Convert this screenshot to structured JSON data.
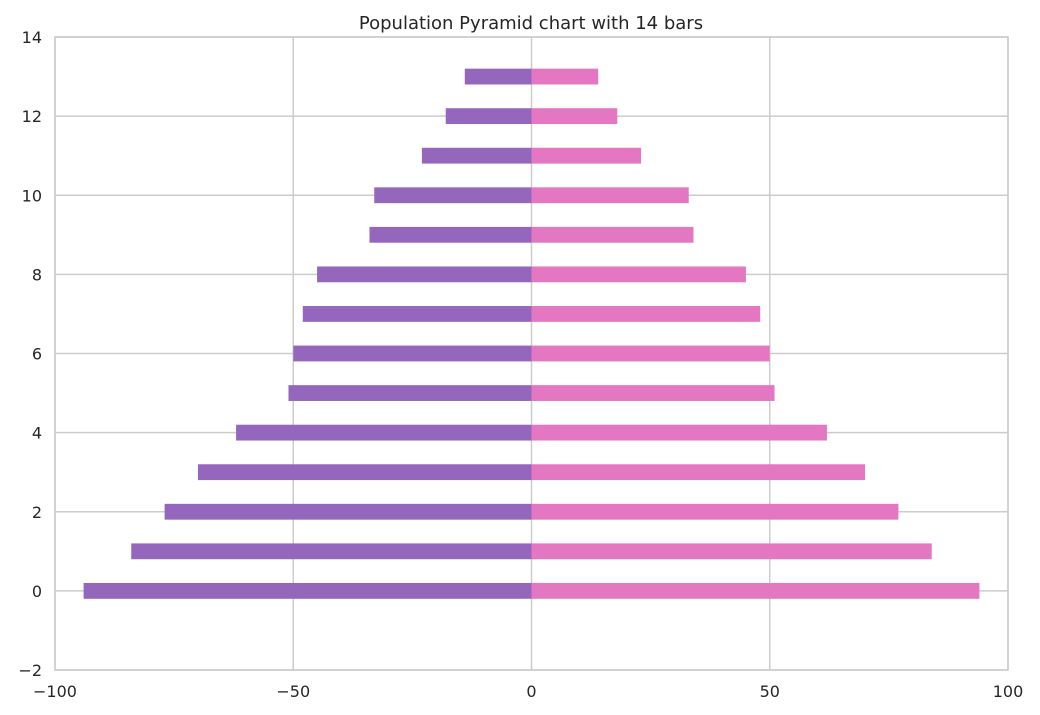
{
  "chart_data": {
    "type": "bar",
    "orientation": "horizontal",
    "title": "Population Pyramid chart with 14 bars",
    "xlabel": "",
    "ylabel": "",
    "xlim": [
      -100,
      100
    ],
    "ylim": [
      -2,
      14
    ],
    "x_ticks": [
      -100,
      -50,
      0,
      50,
      100
    ],
    "x_tick_labels": [
      "−100",
      "−50",
      "0",
      "50",
      "100"
    ],
    "y_ticks": [
      -2,
      0,
      2,
      4,
      6,
      8,
      10,
      12,
      14
    ],
    "y_tick_labels": [
      "−2",
      "0",
      "2",
      "4",
      "6",
      "8",
      "10",
      "12",
      "14"
    ],
    "grid": true,
    "categories": [
      0,
      1,
      2,
      3,
      4,
      5,
      6,
      7,
      8,
      9,
      10,
      11,
      12,
      13
    ],
    "series": [
      {
        "color": "#9467bd",
        "values": [
          -94,
          -84,
          -77,
          -70,
          -62,
          -51,
          -50,
          -48,
          -45,
          -34,
          -33,
          -23,
          -18,
          -14
        ]
      },
      {
        "color": "#e377c2",
        "values": [
          94,
          84,
          77,
          70,
          62,
          51,
          50,
          48,
          45,
          34,
          33,
          23,
          18,
          14
        ]
      }
    ]
  }
}
